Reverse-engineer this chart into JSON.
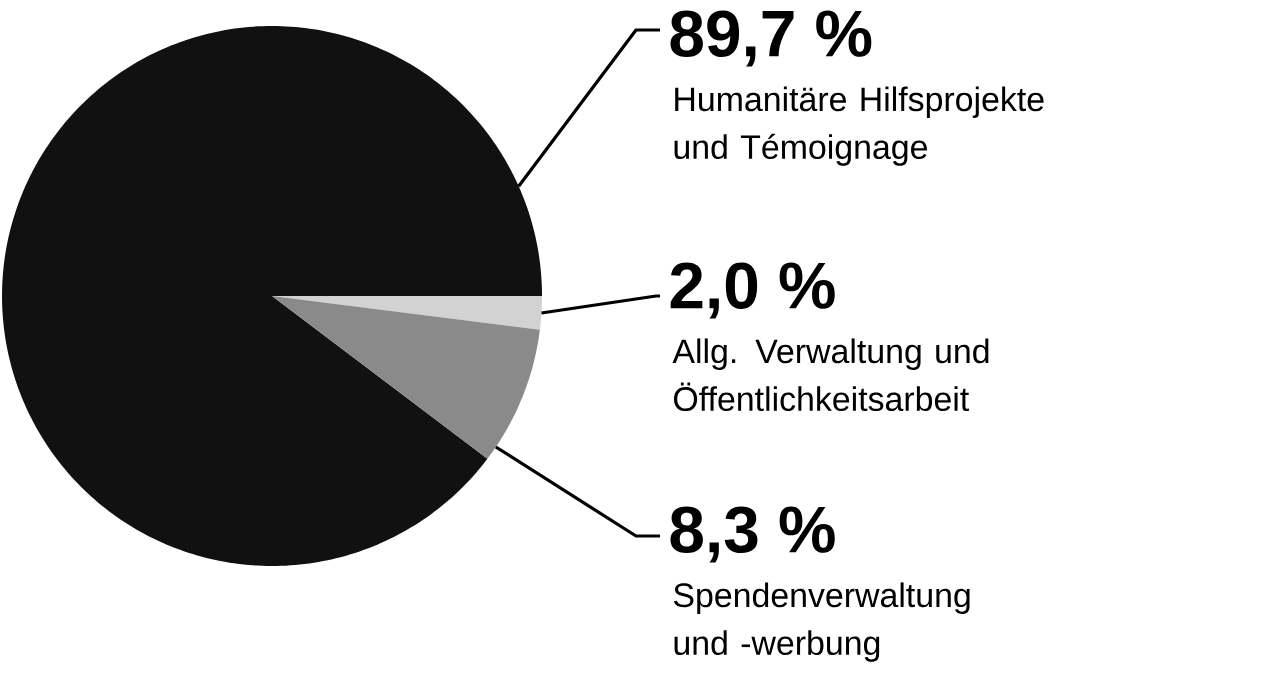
{
  "chart_data": {
    "type": "pie",
    "categories": [
      "Humanitäre Hilfsprojekte und Témoignage",
      "Allg. Verwaltung und Öffentlichkeitsarbeit",
      "Spendenverwaltung und -werbung"
    ],
    "values": [
      89.7,
      2.0,
      8.3
    ],
    "value_labels": [
      "89,7 %",
      "2,0 %",
      "8,3 %"
    ],
    "colors": [
      "#111111",
      "#d2d2d2",
      "#8a8a8a"
    ]
  }
}
